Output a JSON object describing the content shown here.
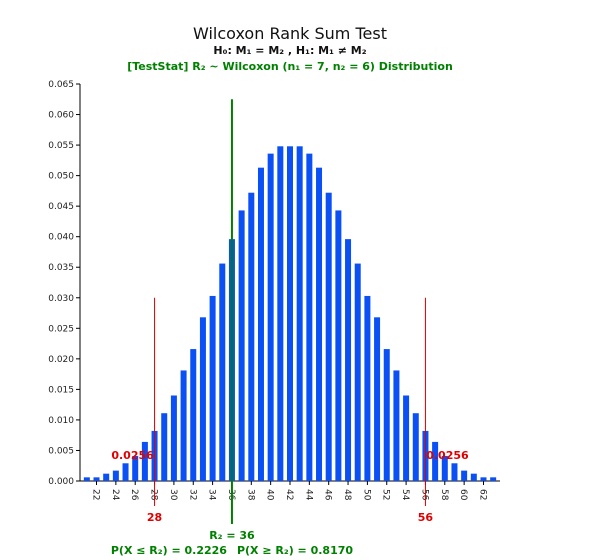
{
  "chart_data": {
    "type": "bar",
    "title": "Wilcoxon Rank Sum Test",
    "hypothesis": "H₀: M₁ = M₂ , H₁: M₁ ≠ M₂",
    "subtitle": "[TestStat] R₂ ~ Wilcoxon (n₁ = 7, n₂ = 6) Distribution",
    "x": [
      21,
      22,
      23,
      24,
      25,
      26,
      27,
      28,
      29,
      30,
      31,
      32,
      33,
      34,
      35,
      36,
      37,
      38,
      39,
      40,
      41,
      42,
      43,
      44,
      45,
      46,
      47,
      48,
      49,
      50,
      51,
      52,
      53,
      54,
      55,
      56,
      57,
      58,
      59,
      60,
      61,
      62,
      63
    ],
    "values": [
      0.0006,
      0.0006,
      0.0012,
      0.0017,
      0.0029,
      0.0041,
      0.0064,
      0.0082,
      0.0111,
      0.014,
      0.0181,
      0.0216,
      0.0268,
      0.0303,
      0.0356,
      0.0396,
      0.0443,
      0.0472,
      0.0513,
      0.0536,
      0.0548,
      0.0548,
      0.0548,
      0.0536,
      0.0513,
      0.0472,
      0.0443,
      0.0396,
      0.0356,
      0.0303,
      0.0268,
      0.0216,
      0.0181,
      0.014,
      0.0111,
      0.0082,
      0.0064,
      0.0041,
      0.0029,
      0.0017,
      0.0012,
      0.0006,
      0.0006
    ],
    "xticks": [
      22,
      24,
      26,
      28,
      30,
      32,
      34,
      36,
      38,
      40,
      42,
      44,
      46,
      48,
      50,
      52,
      54,
      56,
      58,
      60,
      62
    ],
    "yticks": [
      "0.000",
      "0.005",
      "0.010",
      "0.015",
      "0.020",
      "0.025",
      "0.030",
      "0.035",
      "0.040",
      "0.045",
      "0.050",
      "0.055",
      "0.060",
      "0.065"
    ],
    "ylim": [
      0,
      0.065
    ],
    "xlim": [
      21,
      63
    ],
    "critical_lines": [
      {
        "x": 28,
        "label": "28",
        "tail_prob": "0.0256"
      },
      {
        "x": 56,
        "label": "56",
        "tail_prob": "0.0256"
      }
    ],
    "test_statistic": {
      "x": 36,
      "label": "R₂ = 36",
      "p_lower": "P(X ≤ R₂) = 0.2226",
      "p_upper": "P(X ≥ R₂) = 0.8170"
    },
    "colors": {
      "bar": "#0a50f5",
      "critical": "#e00000",
      "statistic": "#008000"
    },
    "grid": false
  }
}
